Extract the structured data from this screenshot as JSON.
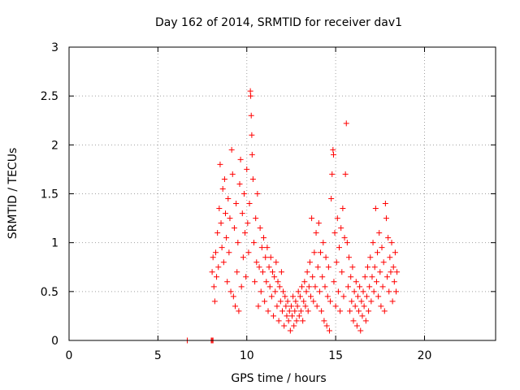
{
  "chart_data": {
    "type": "scatter",
    "title": "Day 162 of 2014, SRMTID for receiver dav1",
    "xlabel": "GPS time / hours",
    "ylabel": "SRMTID / TECUs",
    "xlim": [
      0,
      24
    ],
    "ylim": [
      0,
      3
    ],
    "xticks": [
      "0",
      "5",
      "10",
      "15",
      "20"
    ],
    "yticks": [
      "0",
      "0.5",
      "1",
      "1.5",
      "2",
      "2.5",
      "3"
    ],
    "grid": true,
    "marker": "plus",
    "color": "#ff0000",
    "series": [
      {
        "values": [
          [
            6.65,
            0.0
          ],
          [
            8.0,
            0.0
          ],
          [
            8.05,
            0.0
          ],
          [
            8.1,
            0.0
          ],
          [
            8.05,
            0.7
          ],
          [
            8.1,
            0.85
          ],
          [
            8.15,
            0.55
          ],
          [
            8.2,
            0.4
          ],
          [
            8.25,
            0.9
          ],
          [
            8.3,
            0.65
          ],
          [
            8.35,
            1.1
          ],
          [
            8.4,
            0.75
          ],
          [
            8.45,
            1.35
          ],
          [
            8.5,
            1.8
          ],
          [
            8.55,
            1.2
          ],
          [
            8.6,
            0.95
          ],
          [
            8.65,
            1.55
          ],
          [
            8.7,
            0.8
          ],
          [
            8.75,
            1.65
          ],
          [
            8.8,
            1.3
          ],
          [
            8.85,
            1.05
          ],
          [
            8.9,
            0.6
          ],
          [
            8.95,
            1.45
          ],
          [
            9.0,
            0.9
          ],
          [
            9.05,
            1.25
          ],
          [
            9.1,
            0.5
          ],
          [
            9.15,
            1.95
          ],
          [
            9.2,
            1.7
          ],
          [
            9.25,
            0.45
          ],
          [
            9.3,
            1.15
          ],
          [
            9.35,
            0.35
          ],
          [
            9.4,
            1.4
          ],
          [
            9.45,
            0.7
          ],
          [
            9.5,
            1.0
          ],
          [
            9.55,
            0.3
          ],
          [
            9.6,
            1.6
          ],
          [
            9.65,
            1.85
          ],
          [
            9.7,
            0.55
          ],
          [
            9.75,
            1.3
          ],
          [
            9.8,
            0.85
          ],
          [
            9.85,
            1.5
          ],
          [
            9.9,
            1.1
          ],
          [
            9.95,
            0.65
          ],
          [
            10.0,
            1.75
          ],
          [
            10.05,
            1.2
          ],
          [
            10.1,
            0.9
          ],
          [
            10.15,
            1.4
          ],
          [
            10.2,
            2.55
          ],
          [
            10.22,
            2.5
          ],
          [
            10.25,
            2.3
          ],
          [
            10.28,
            2.1
          ],
          [
            10.3,
            1.9
          ],
          [
            10.35,
            1.65
          ],
          [
            10.4,
            1.0
          ],
          [
            10.45,
            0.6
          ],
          [
            10.5,
            1.25
          ],
          [
            10.55,
            0.8
          ],
          [
            10.6,
            1.5
          ],
          [
            10.65,
            0.35
          ],
          [
            10.7,
            0.75
          ],
          [
            10.75,
            1.15
          ],
          [
            10.8,
            0.5
          ],
          [
            10.85,
            0.95
          ],
          [
            10.9,
            0.7
          ],
          [
            10.95,
            1.05
          ],
          [
            11.0,
            0.4
          ],
          [
            11.05,
            0.85
          ],
          [
            11.1,
            0.6
          ],
          [
            11.15,
            0.95
          ],
          [
            11.2,
            0.3
          ],
          [
            11.25,
            0.75
          ],
          [
            11.3,
            0.55
          ],
          [
            11.35,
            0.85
          ],
          [
            11.4,
            0.45
          ],
          [
            11.45,
            0.7
          ],
          [
            11.5,
            0.25
          ],
          [
            11.55,
            0.65
          ],
          [
            11.6,
            0.5
          ],
          [
            11.65,
            0.8
          ],
          [
            11.7,
            0.35
          ],
          [
            11.75,
            0.6
          ],
          [
            11.8,
            0.2
          ],
          [
            11.85,
            0.55
          ],
          [
            11.9,
            0.4
          ],
          [
            11.95,
            0.7
          ],
          [
            12.0,
            0.3
          ],
          [
            12.05,
            0.5
          ],
          [
            12.1,
            0.15
          ],
          [
            12.15,
            0.45
          ],
          [
            12.2,
            0.35
          ],
          [
            12.25,
            0.25
          ],
          [
            12.3,
            0.4
          ],
          [
            12.35,
            0.2
          ],
          [
            12.4,
            0.3
          ],
          [
            12.45,
            0.1
          ],
          [
            12.5,
            0.35
          ],
          [
            12.55,
            0.25
          ],
          [
            12.6,
            0.45
          ],
          [
            12.65,
            0.15
          ],
          [
            12.7,
            0.3
          ],
          [
            12.75,
            0.4
          ],
          [
            12.8,
            0.2
          ],
          [
            12.85,
            0.35
          ],
          [
            12.9,
            0.5
          ],
          [
            12.95,
            0.25
          ],
          [
            13.0,
            0.45
          ],
          [
            13.05,
            0.3
          ],
          [
            13.1,
            0.55
          ],
          [
            13.15,
            0.2
          ],
          [
            13.2,
            0.4
          ],
          [
            13.25,
            0.6
          ],
          [
            13.3,
            0.35
          ],
          [
            13.35,
            0.5
          ],
          [
            13.4,
            0.7
          ],
          [
            13.45,
            0.3
          ],
          [
            13.5,
            0.55
          ],
          [
            13.55,
            0.8
          ],
          [
            13.6,
            0.45
          ],
          [
            13.65,
            1.25
          ],
          [
            13.7,
            0.65
          ],
          [
            13.75,
            0.4
          ],
          [
            13.8,
            0.9
          ],
          [
            13.85,
            0.55
          ],
          [
            13.9,
            1.1
          ],
          [
            13.95,
            0.35
          ],
          [
            14.0,
            0.75
          ],
          [
            14.05,
            1.2
          ],
          [
            14.1,
            0.5
          ],
          [
            14.15,
            0.9
          ],
          [
            14.2,
            0.3
          ],
          [
            14.25,
            0.65
          ],
          [
            14.3,
            1.0
          ],
          [
            14.35,
            0.2
          ],
          [
            14.4,
            0.55
          ],
          [
            14.45,
            0.85
          ],
          [
            14.5,
            0.15
          ],
          [
            14.55,
            0.45
          ],
          [
            14.6,
            0.75
          ],
          [
            14.65,
            0.1
          ],
          [
            14.7,
            0.4
          ],
          [
            14.75,
            1.45
          ],
          [
            14.8,
            1.7
          ],
          [
            14.85,
            1.95
          ],
          [
            14.88,
            1.9
          ],
          [
            14.9,
            0.6
          ],
          [
            14.95,
            1.1
          ],
          [
            15.0,
            0.35
          ],
          [
            15.05,
            0.8
          ],
          [
            15.1,
            1.25
          ],
          [
            15.15,
            0.5
          ],
          [
            15.2,
            0.95
          ],
          [
            15.25,
            0.3
          ],
          [
            15.3,
            1.15
          ],
          [
            15.35,
            0.7
          ],
          [
            15.4,
            1.35
          ],
          [
            15.45,
            0.45
          ],
          [
            15.5,
            1.05
          ],
          [
            15.55,
            1.7
          ],
          [
            15.6,
            2.22
          ],
          [
            15.65,
            1.0
          ],
          [
            15.7,
            0.55
          ],
          [
            15.75,
            0.85
          ],
          [
            15.8,
            0.3
          ],
          [
            15.85,
            0.65
          ],
          [
            15.9,
            0.4
          ],
          [
            15.95,
            0.75
          ],
          [
            16.0,
            0.2
          ],
          [
            16.05,
            0.5
          ],
          [
            16.1,
            0.35
          ],
          [
            16.15,
            0.6
          ],
          [
            16.2,
            0.15
          ],
          [
            16.25,
            0.45
          ],
          [
            16.3,
            0.3
          ],
          [
            16.35,
            0.55
          ],
          [
            16.4,
            0.1
          ],
          [
            16.45,
            0.4
          ],
          [
            16.5,
            0.25
          ],
          [
            16.55,
            0.5
          ],
          [
            16.6,
            0.35
          ],
          [
            16.65,
            0.65
          ],
          [
            16.7,
            0.2
          ],
          [
            16.75,
            0.45
          ],
          [
            16.8,
            0.75
          ],
          [
            16.85,
            0.3
          ],
          [
            16.9,
            0.55
          ],
          [
            16.95,
            0.85
          ],
          [
            17.0,
            0.4
          ],
          [
            17.05,
            0.65
          ],
          [
            17.1,
            1.0
          ],
          [
            17.15,
            0.5
          ],
          [
            17.2,
            0.75
          ],
          [
            17.25,
            1.35
          ],
          [
            17.3,
            0.6
          ],
          [
            17.35,
            0.9
          ],
          [
            17.4,
            0.45
          ],
          [
            17.45,
            1.1
          ],
          [
            17.5,
            0.7
          ],
          [
            17.55,
            0.35
          ],
          [
            17.6,
            0.95
          ],
          [
            17.65,
            0.55
          ],
          [
            17.7,
            0.8
          ],
          [
            17.75,
            0.3
          ],
          [
            17.8,
            1.4
          ],
          [
            17.85,
            1.25
          ],
          [
            17.9,
            0.65
          ],
          [
            17.95,
            1.05
          ],
          [
            18.0,
            0.5
          ],
          [
            18.05,
            0.85
          ],
          [
            18.1,
            0.7
          ],
          [
            18.15,
            1.0
          ],
          [
            18.2,
            0.4
          ],
          [
            18.25,
            0.75
          ],
          [
            18.3,
            0.6
          ],
          [
            18.35,
            0.9
          ],
          [
            18.4,
            0.5
          ],
          [
            18.45,
            0.7
          ]
        ]
      }
    ]
  }
}
